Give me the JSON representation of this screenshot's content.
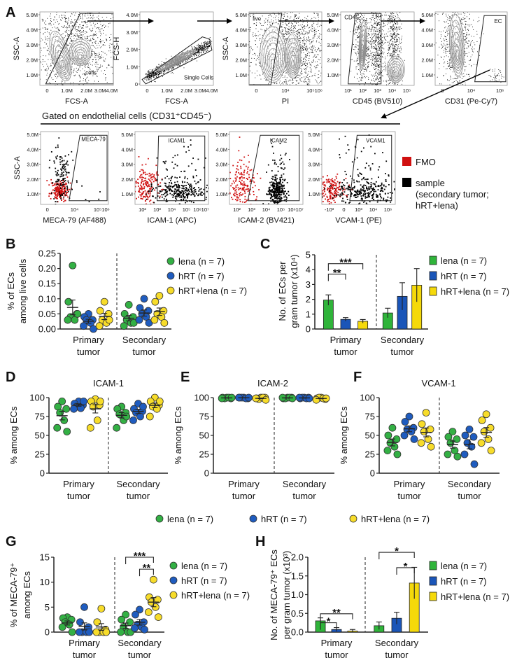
{
  "panel_letters": {
    "A": "A",
    "B": "B",
    "C": "C",
    "D": "D",
    "E": "E",
    "F": "F",
    "G": "G",
    "H": "H"
  },
  "flow": {
    "row1": [
      {
        "y_label": "SSC-A",
        "x_label": "FCS-A",
        "y_ticks": [
          "5.0M",
          "4.0M",
          "3.0M",
          "2.0M",
          "1.0M"
        ],
        "x_ticks": [
          "0",
          "1.0M",
          "2.0M",
          "3.0M4.0M"
        ],
        "gate": "cells"
      },
      {
        "y_label": "FCS-H",
        "x_label": "FCS-A",
        "y_ticks": [
          "4.0M",
          "3.0M",
          "2.0M",
          "1.0M",
          "0"
        ],
        "x_ticks": [
          "0",
          "1.0M",
          "2.0M",
          "3.0M4.0M"
        ],
        "gate": "Single Cells"
      },
      {
        "y_label": "SSC-A",
        "x_label": "PI",
        "y_ticks": [
          "5.0M",
          "4.0M",
          "3.0M",
          "2.0M",
          "1.0M"
        ],
        "x_ticks": [
          "0",
          "10⁴",
          "10⁵10⁶"
        ],
        "gate": "live"
      },
      {
        "y_label": "",
        "x_label": "CD45 (BV510)",
        "y_ticks": [
          "5.0M",
          "4.0M",
          "3.0M",
          "2.0M",
          "1.0M"
        ],
        "x_ticks": [
          "10¹",
          "10²",
          "10³",
          "10⁴",
          "10⁵"
        ],
        "gate": "CD45-"
      },
      {
        "y_label": "",
        "x_label": "CD31 (Pe-Cy7)",
        "y_ticks": [
          "5.0M",
          "4.0M",
          "3.0M",
          "2.0M",
          "1.0M"
        ],
        "x_ticks": [
          "0",
          "10⁴",
          "10⁶"
        ],
        "gate": "EC"
      }
    ],
    "gated_title": "Gated on endothelial cells (CD31⁺CD45⁻)",
    "row2": [
      {
        "y_label": "SSC-A",
        "x_label": "MECA-79 (AF488)",
        "y_ticks": [
          "5.0M",
          "4.0M",
          "3.0M",
          "2.0M",
          "1.0M"
        ],
        "x_ticks": [
          "0",
          "10⁴",
          "10⁵10⁶"
        ],
        "gate": "MECA-79"
      },
      {
        "y_label": "",
        "x_label": "ICAM-1 (APC)",
        "y_ticks": [
          "5.0M",
          "4.0M",
          "3.0M",
          "2.0M",
          "1.0M"
        ],
        "x_ticks": [
          "10²",
          "10³",
          "10⁴",
          "10⁵",
          "10⁶10⁷"
        ],
        "gate": "ICAM1"
      },
      {
        "y_label": "",
        "x_label": "ICAM-2 (BV421)",
        "y_ticks": [
          "5.0M",
          "4.0M",
          "3.0M",
          "2.0M",
          "1.0M"
        ],
        "x_ticks": [
          "10²",
          "10³",
          "10⁴",
          "10⁵",
          "10⁶10⁷"
        ],
        "gate": "ICAM2"
      },
      {
        "y_label": "",
        "x_label": "VCAM-1 (PE)",
        "y_ticks": [
          "5.0M",
          "4.0M",
          "3.0M",
          "2.0M",
          "1.0M"
        ],
        "x_ticks": [
          "-10³",
          "0",
          "10³",
          "10⁴",
          "10⁶"
        ],
        "gate": "VCAM1"
      }
    ],
    "legend": [
      {
        "label": "FMO",
        "color": "#d01010"
      },
      {
        "label": "sample",
        "sub": [
          "(secondary tumor;",
          "hRT+lena)"
        ],
        "color": "#000000"
      }
    ]
  },
  "colors": {
    "lena": "#33b044",
    "hRT": "#1f5cbf",
    "hRT+lena": "#f7dc2a",
    "lena_bar": "#2fb43a",
    "hRT_bar": "#1a55b8",
    "hRT+lena_bar": "#f5d90a"
  },
  "shared_legend_DEF": [
    "lena (n = 7)",
    "hRT (n = 7)",
    "hRT+lena (n = 7)"
  ],
  "chart_data": [
    {
      "id": "B",
      "type": "scatter",
      "title": "",
      "ylabel": [
        "% of ECs",
        "among live cells"
      ],
      "ylim": [
        0,
        0.25
      ],
      "yticks": [
        "0.00",
        "0.05",
        "0.10",
        "0.15",
        "0.20",
        "0.25"
      ],
      "categories": [
        [
          "Primary",
          "tumor"
        ],
        [
          "Secondary",
          "tumor"
        ]
      ],
      "series": [
        {
          "name": "lena (n = 7)",
          "key": "lena",
          "values": [
            [
              0.21,
              0.09,
              0.05,
              0.04,
              0.03,
              0.03,
              0.05
            ],
            [
              0.08,
              0.05,
              0.04,
              0.03,
              0.02,
              0.01,
              0.02
            ]
          ]
        },
        {
          "name": "hRT (n = 7)",
          "key": "hRT",
          "values": [
            [
              0.05,
              0.04,
              0.03,
              0.03,
              0.02,
              0.01,
              0.0
            ],
            [
              0.1,
              0.07,
              0.06,
              0.05,
              0.04,
              0.03,
              0.02
            ]
          ]
        },
        {
          "name": "hRT+lena (n = 7)",
          "key": "hRT+lena",
          "values": [
            [
              0.09,
              0.06,
              0.05,
              0.03,
              0.02,
              0.01,
              0.03
            ],
            [
              0.11,
              0.09,
              0.06,
              0.05,
              0.04,
              0.03,
              0.02
            ]
          ]
        }
      ],
      "brackets": []
    },
    {
      "id": "C",
      "type": "bar",
      "title": "",
      "ylabel": [
        "No. of ECs per",
        "gram tumor (x10⁴)"
      ],
      "ylim": [
        0,
        5
      ],
      "yticks": [
        "0",
        "1",
        "2",
        "3",
        "4",
        "5"
      ],
      "categories": [
        [
          "Primary",
          "tumor"
        ],
        [
          "Secondary",
          "tumor"
        ]
      ],
      "series": [
        {
          "name": "lena (n = 7)",
          "key": "lena_bar",
          "values": [
            1.95,
            1.08
          ],
          "errors": [
            0.35,
            0.32
          ]
        },
        {
          "name": "hRT (n = 7)",
          "key": "hRT_bar",
          "values": [
            0.65,
            2.2
          ],
          "errors": [
            0.12,
            0.92
          ]
        },
        {
          "name": "hRT+lena (n = 7)",
          "key": "hRT+lena_bar",
          "values": [
            0.52,
            2.95
          ],
          "errors": [
            0.12,
            1.12
          ]
        }
      ],
      "brackets": [
        {
          "group": 0,
          "from": 0,
          "to": 1,
          "y": 3.7,
          "label": "**"
        },
        {
          "group": 0,
          "from": 0,
          "to": 2,
          "y": 4.4,
          "label": "***"
        }
      ]
    },
    {
      "id": "D",
      "type": "scatter",
      "title": "ICAM-1",
      "ylabel": [
        "% among ECs"
      ],
      "ylim": [
        0,
        100
      ],
      "yticks": [
        "0",
        "25",
        "50",
        "75",
        "100"
      ],
      "categories": [
        [
          "Primary",
          "tumor"
        ],
        [
          "Secondary",
          "tumor"
        ]
      ],
      "series": [
        {
          "name": "lena (n = 7)",
          "key": "lena",
          "values": [
            [
              95,
              88,
              85,
              80,
              70,
              60,
              55
            ],
            [
              88,
              85,
              80,
              78,
              70,
              60,
              75
            ]
          ]
        },
        {
          "name": "hRT (n = 7)",
          "key": "hRT",
          "values": [
            [
              95,
              92,
              90,
              88,
              86,
              85,
              95
            ],
            [
              92,
              85,
              82,
              80,
              75,
              70,
              88
            ]
          ]
        },
        {
          "name": "hRT+lena (n = 7)",
          "key": "hRT+lena",
          "values": [
            [
              98,
              95,
              90,
              88,
              70,
              60,
              95
            ],
            [
              100,
              95,
              90,
              88,
              85,
              75,
              95
            ]
          ]
        }
      ],
      "brackets": []
    },
    {
      "id": "E",
      "type": "scatter",
      "title": "ICAM-2",
      "ylabel": [
        "% among ECs"
      ],
      "ylim": [
        0,
        100
      ],
      "yticks": [
        "0",
        "25",
        "50",
        "75",
        "100"
      ],
      "categories": [
        [
          "Primary",
          "tumor"
        ],
        [
          "Secondary",
          "tumor"
        ]
      ],
      "series": [
        {
          "name": "lena (n = 7)",
          "key": "lena",
          "values": [
            [
              100,
              100,
              99,
              99,
              100,
              99,
              100
            ],
            [
              100,
              99,
              100,
              99,
              100,
              100,
              99
            ]
          ]
        },
        {
          "name": "hRT (n = 7)",
          "key": "hRT",
          "values": [
            [
              100,
              100,
              99,
              100,
              99,
              100,
              100
            ],
            [
              100,
              99,
              100,
              100,
              99,
              100,
              99
            ]
          ]
        },
        {
          "name": "hRT+lena (n = 7)",
          "key": "hRT+lena",
          "values": [
            [
              100,
              99,
              100,
              98,
              100,
              99,
              97
            ],
            [
              100,
              99,
              98,
              100,
              99,
              97,
              99
            ]
          ]
        }
      ],
      "brackets": []
    },
    {
      "id": "F",
      "type": "scatter",
      "title": "VCAM-1",
      "ylabel": [
        "% among ECs"
      ],
      "ylim": [
        0,
        100
      ],
      "yticks": [
        "0",
        "25",
        "50",
        "75",
        "100"
      ],
      "categories": [
        [
          "Primary",
          "tumor"
        ],
        [
          "Secondary",
          "tumor"
        ]
      ],
      "series": [
        {
          "name": "lena (n = 7)",
          "key": "lena",
          "values": [
            [
              60,
              50,
              45,
              40,
              35,
              30,
              25
            ],
            [
              55,
              48,
              45,
              40,
              30,
              25,
              22
            ]
          ]
        },
        {
          "name": "hRT (n = 7)",
          "key": "hRT",
          "values": [
            [
              75,
              68,
              60,
              58,
              55,
              50,
              45
            ],
            [
              58,
              50,
              48,
              40,
              35,
              25,
              12
            ]
          ]
        },
        {
          "name": "hRT+lena (n = 7)",
          "key": "hRT+lena",
          "values": [
            [
              80,
              65,
              58,
              55,
              45,
              40,
              35
            ],
            [
              78,
              70,
              60,
              55,
              45,
              40,
              30
            ]
          ]
        }
      ],
      "brackets": []
    },
    {
      "id": "G",
      "type": "scatter",
      "title": "",
      "ylabel": [
        "% of MECA-79⁺",
        "among ECs"
      ],
      "ylim": [
        0,
        15
      ],
      "yticks": [
        "0",
        "5",
        "10",
        "15"
      ],
      "categories": [
        [
          "Primary",
          "tumor"
        ],
        [
          "Secondary",
          "tumor"
        ]
      ],
      "series": [
        {
          "name": "lena (n = 7)",
          "key": "lena",
          "values": [
            [
              3,
              2.8,
              2.5,
              2,
              1.5,
              1,
              0
            ],
            [
              3.5,
              2.5,
              2,
              1,
              0,
              0,
              0
            ]
          ]
        },
        {
          "name": "hRT (n = 7)",
          "key": "hRT",
          "values": [
            [
              5,
              2,
              1,
              0,
              0,
              0,
              0
            ],
            [
              4.5,
              3.5,
              2,
              1.5,
              1,
              0.8,
              0.5
            ]
          ]
        },
        {
          "name": "hRT+lena (n = 7)",
          "key": "hRT+lena",
          "values": [
            [
              4.7,
              2,
              0.5,
              0,
              0,
              0,
              0
            ],
            [
              10.5,
              7,
              6.5,
              6,
              5,
              4,
              3
            ]
          ]
        }
      ],
      "brackets": [
        {
          "group": 1,
          "from": 0,
          "to": 2,
          "y": 15,
          "label": "***"
        },
        {
          "group": 1,
          "from": 1,
          "to": 2,
          "y": 12.6,
          "label": "**"
        }
      ]
    },
    {
      "id": "H",
      "type": "bar",
      "title": "",
      "ylabel": [
        "No. of MECA-79⁺ ECs",
        "per gram tumor (x10³)"
      ],
      "ylim": [
        0,
        2
      ],
      "yticks": [
        "0.0",
        "0.5",
        "1.0",
        "1.5",
        "2.0"
      ],
      "categories": [
        [
          "Primary",
          "tumor"
        ],
        [
          "Secondary",
          "tumor"
        ]
      ],
      "series": [
        {
          "name": "lena (n = 7)",
          "key": "lena_bar",
          "values": [
            0.3,
            0.17
          ],
          "errors": [
            0.08,
            0.1
          ]
        },
        {
          "name": "hRT (n = 7)",
          "key": "hRT_bar",
          "values": [
            0.07,
            0.37
          ],
          "errors": [
            0.05,
            0.16
          ]
        },
        {
          "name": "hRT+lena (n = 7)",
          "key": "hRT+lena_bar",
          "values": [
            0.03,
            1.31
          ],
          "errors": [
            0.04,
            0.42
          ]
        }
      ],
      "brackets": [
        {
          "group": 0,
          "from": 0,
          "to": 1,
          "y": 0.25,
          "label": "*"
        },
        {
          "group": 0,
          "from": 0,
          "to": 2,
          "y": 0.49,
          "label": "**"
        },
        {
          "group": 1,
          "from": 0,
          "to": 2,
          "y": 2.13,
          "label": "*"
        },
        {
          "group": 1,
          "from": 1,
          "to": 2,
          "y": 1.72,
          "label": "*"
        }
      ]
    }
  ]
}
